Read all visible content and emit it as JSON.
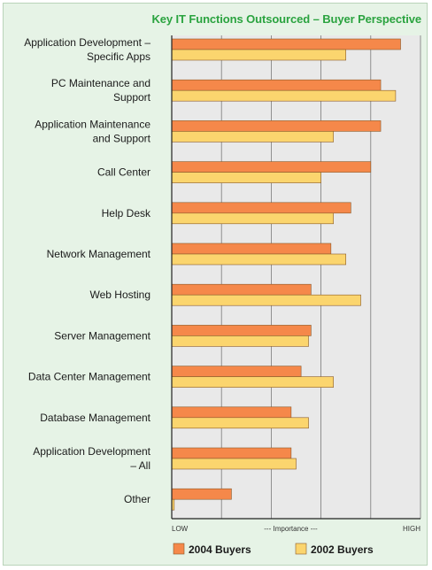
{
  "chart_data": {
    "type": "bar",
    "orientation": "horizontal",
    "title": "Key IT Functions Outsourced – Buyer Perspective",
    "categories": [
      [
        "Application Development –",
        "Specific Apps"
      ],
      [
        "PC Maintenance and",
        "Support"
      ],
      [
        "Application Maintenance",
        "and Support"
      ],
      [
        "Call Center"
      ],
      [
        "Help Desk"
      ],
      [
        "Network Management"
      ],
      [
        "Web Hosting"
      ],
      [
        "Server Management"
      ],
      [
        "Data Center Management"
      ],
      [
        "Database Management"
      ],
      [
        "Application Development",
        "– All"
      ],
      [
        "Other"
      ]
    ],
    "series": [
      {
        "name": "2004 Buyers",
        "color": "#f5884a",
        "values": [
          92,
          84,
          84,
          80,
          72,
          64,
          56,
          56,
          52,
          48,
          48,
          24
        ]
      },
      {
        "name": "2002 Buyers",
        "color": "#fbd56e",
        "values": [
          70,
          90,
          65,
          60,
          65,
          70,
          76,
          55,
          65,
          55,
          50,
          1
        ]
      }
    ],
    "xlim": [
      0,
      100
    ],
    "x_ticks": {
      "low": "LOW",
      "middle": "--- Importance ---",
      "high": "HIGH"
    },
    "grid": true,
    "legend_position": "bottom-left"
  }
}
